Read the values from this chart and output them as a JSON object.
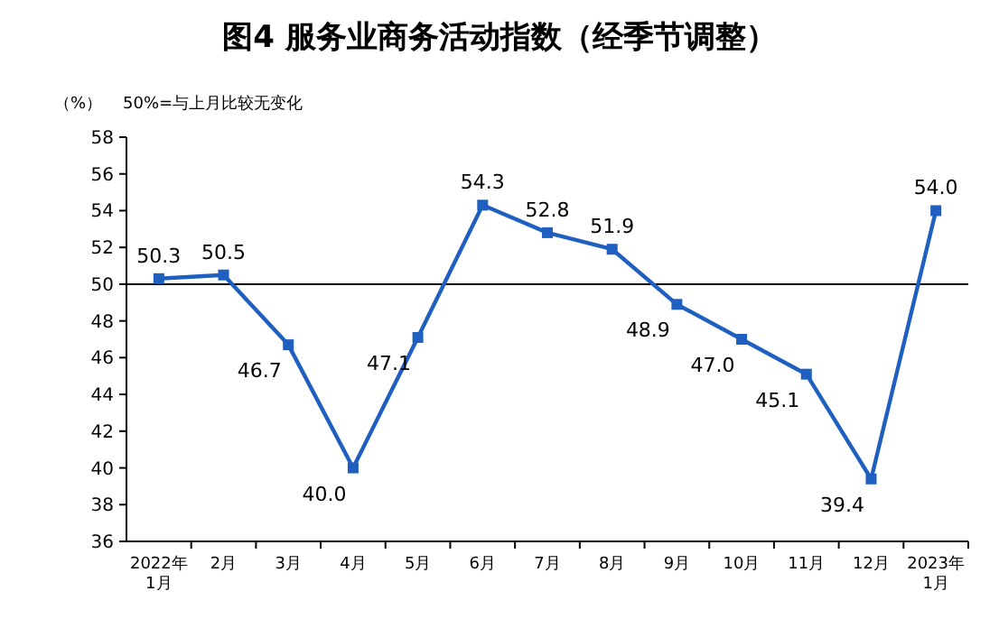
{
  "chart_data": {
    "type": "line",
    "title": "图4  服务业商务活动指数（经季节调整）",
    "annotations": [
      "（%）",
      "50%=与上月比较无变化"
    ],
    "categories": [
      "2022年\n1月",
      "2月",
      "3月",
      "4月",
      "5月",
      "6月",
      "7月",
      "8月",
      "9月",
      "10月",
      "11月",
      "12月",
      "2023年\n1月"
    ],
    "series": [
      {
        "color": "#1f5fc0",
        "values": [
          50.3,
          50.5,
          46.7,
          40.0,
          47.1,
          54.3,
          52.8,
          51.9,
          48.9,
          47.0,
          45.1,
          39.4,
          54.0
        ],
        "value_labels": [
          "50.3",
          "50.5",
          "46.7",
          "40.0",
          "47.1",
          "54.3",
          "52.8",
          "51.9",
          "48.9",
          "47.0",
          "45.1",
          "39.4",
          "54.0"
        ]
      }
    ],
    "ylim": [
      36,
      58
    ],
    "yticks": [
      36,
      38,
      40,
      42,
      44,
      46,
      48,
      50,
      52,
      54,
      56,
      58
    ],
    "ref_lines": [
      {
        "axis": "y",
        "value": 50,
        "color": "#000000"
      }
    ],
    "marker": "square",
    "line_style": "solid"
  }
}
